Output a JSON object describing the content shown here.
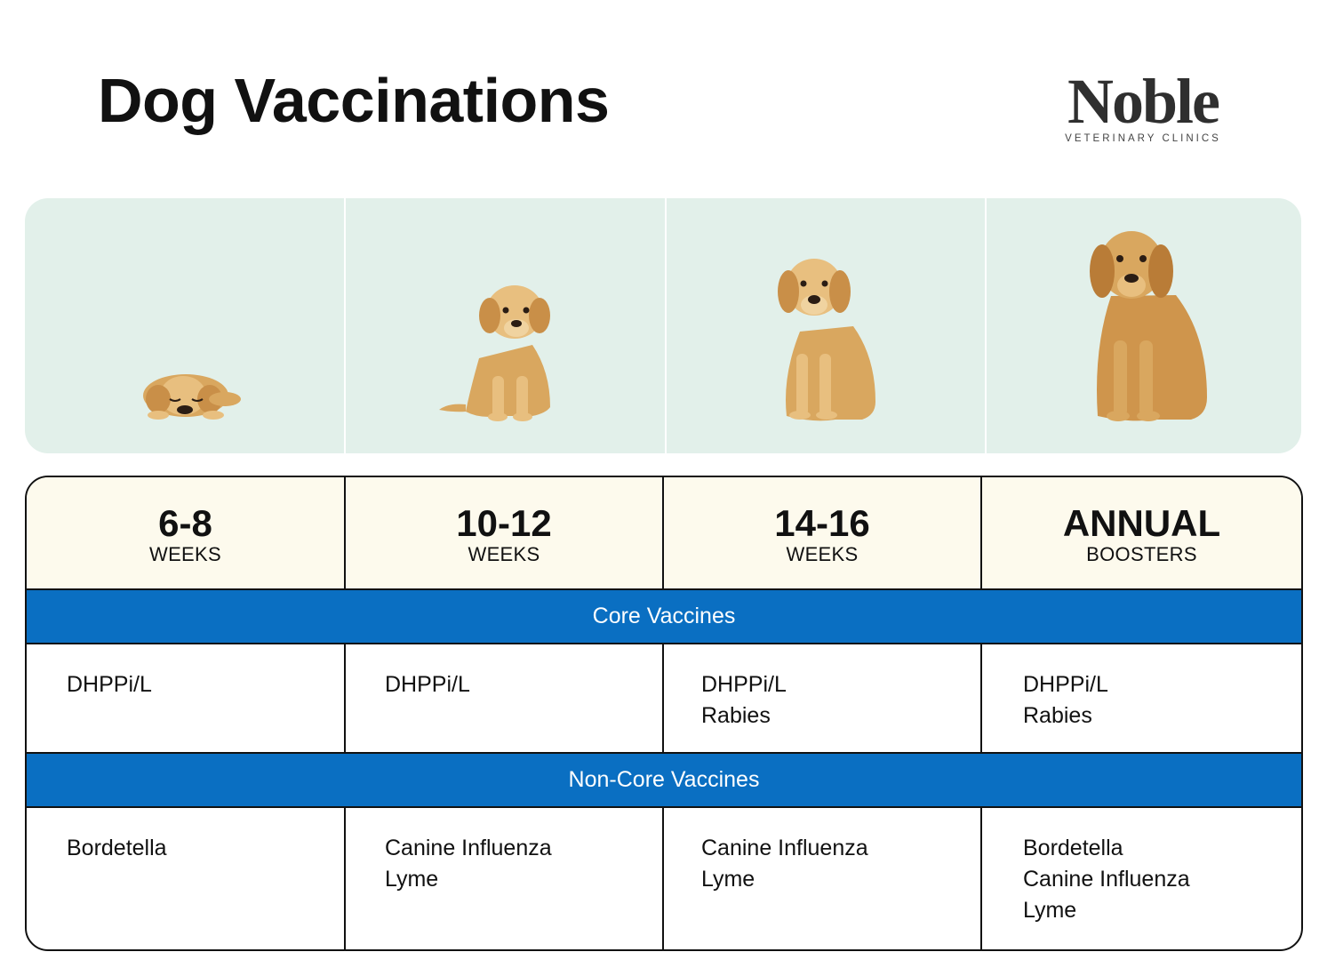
{
  "title": "Dog Vaccinations",
  "logo": {
    "word": "Noble",
    "subtitle": "VETERINARY CLINICS"
  },
  "photos": [
    {
      "icon": "sleeping-puppy-illustration"
    },
    {
      "icon": "young-puppy-illustration"
    },
    {
      "icon": "juvenile-dog-illustration"
    },
    {
      "icon": "adult-dog-illustration"
    }
  ],
  "colors": {
    "band": "#e2f0ea",
    "header_bg": "#fdfaed",
    "section_bar": "#0a6fc2",
    "dog_fur": "#d9a75f"
  },
  "columns": [
    {
      "main": "6-8",
      "sub": "WEEKS"
    },
    {
      "main": "10-12",
      "sub": "WEEKS"
    },
    {
      "main": "14-16",
      "sub": "WEEKS"
    },
    {
      "main": "ANNUAL",
      "sub": "BOOSTERS"
    }
  ],
  "sections": {
    "core": {
      "label": "Core Vaccines",
      "cells": [
        [
          "DHPPi/L"
        ],
        [
          "DHPPi/L"
        ],
        [
          "DHPPi/L",
          "Rabies"
        ],
        [
          "DHPPi/L",
          "Rabies"
        ]
      ]
    },
    "non_core": {
      "label": "Non-Core Vaccines",
      "cells": [
        [
          "Bordetella"
        ],
        [
          "Canine Influenza",
          "Lyme"
        ],
        [
          "Canine Influenza",
          "Lyme"
        ],
        [
          "Bordetella",
          "Canine Influenza",
          "Lyme"
        ]
      ]
    }
  }
}
